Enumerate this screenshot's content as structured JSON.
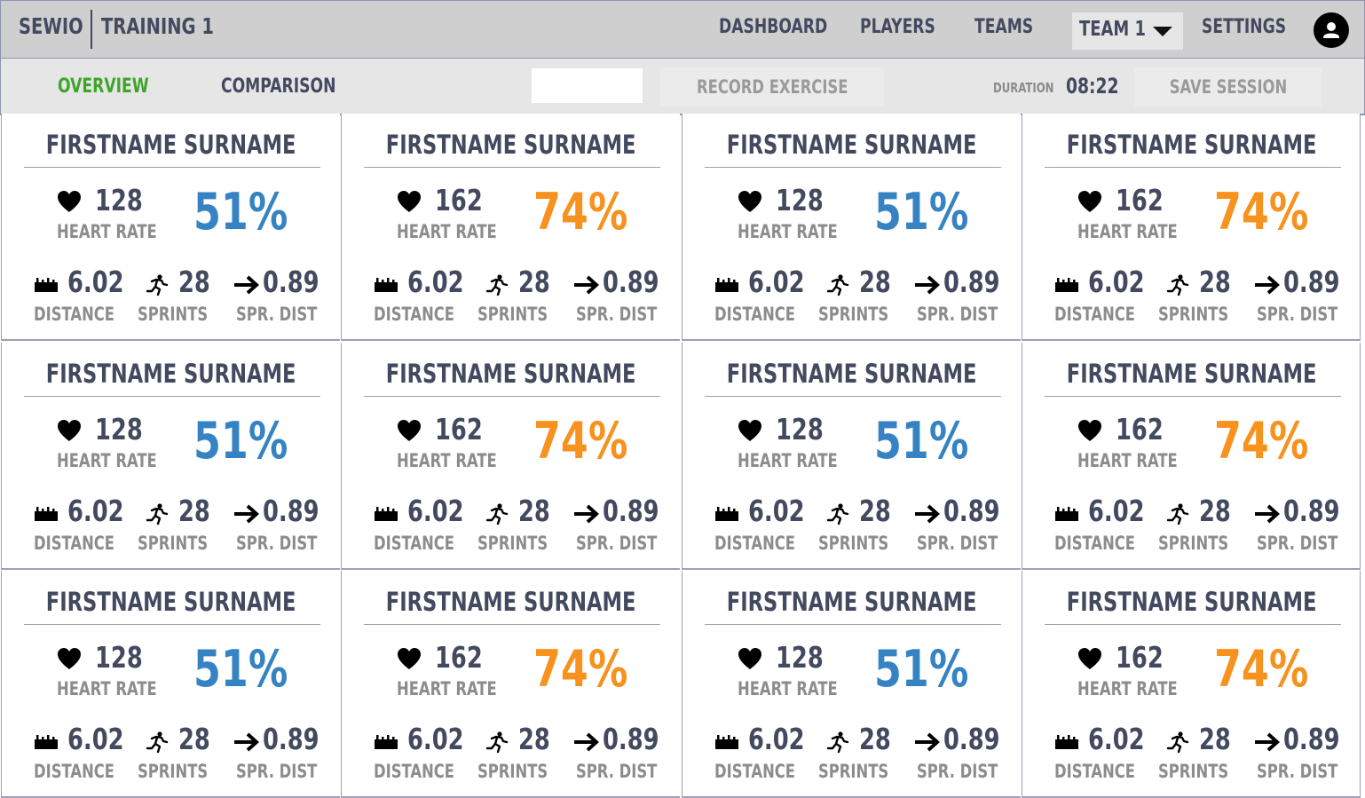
{
  "header": {
    "brand": "SEWIO",
    "session_title": "TRAINING 1",
    "nav": [
      "DASHBOARD",
      "PLAYERS",
      "TEAMS"
    ],
    "team_select": "TEAM 1",
    "settings": "SETTINGS",
    "avatar_icon": "user-icon"
  },
  "toolbar": {
    "tabs": [
      "OVERVIEW",
      "COMPARISON"
    ],
    "active_tab": "OVERVIEW",
    "exercise_input_value": "",
    "record_button": "RECORD EXERCISE",
    "duration_label": "DURATION",
    "duration_value": "08:22",
    "save_button": "SAVE SESSION"
  },
  "colors": {
    "active_tab": "#3fa52a",
    "percent_low": "#3683c4",
    "percent_high": "#f7921e",
    "text_dark": "#434a5f",
    "text_muted": "#8c8c8c"
  },
  "labels": {
    "heart_rate": "HEART RATE",
    "distance": "DISTANCE",
    "sprints": "SPRINTS",
    "sprint_distance": "SPR. DIST"
  },
  "icons": {
    "heart": "heart-icon",
    "distance": "ruler-icon",
    "sprints": "running-icon",
    "sprint_distance": "arrow-right-icon"
  },
  "players": [
    {
      "name": "FIRSTNAME SURNAME",
      "heart_rate": "128",
      "percent": "51%",
      "level": "blue",
      "distance": "6.02",
      "sprints": "28",
      "sprint_distance": "0.89"
    },
    {
      "name": "FIRSTNAME SURNAME",
      "heart_rate": "162",
      "percent": "74%",
      "level": "orange",
      "distance": "6.02",
      "sprints": "28",
      "sprint_distance": "0.89"
    },
    {
      "name": "FIRSTNAME SURNAME",
      "heart_rate": "128",
      "percent": "51%",
      "level": "blue",
      "distance": "6.02",
      "sprints": "28",
      "sprint_distance": "0.89"
    },
    {
      "name": "FIRSTNAME SURNAME",
      "heart_rate": "162",
      "percent": "74%",
      "level": "orange",
      "distance": "6.02",
      "sprints": "28",
      "sprint_distance": "0.89"
    },
    {
      "name": "FIRSTNAME SURNAME",
      "heart_rate": "128",
      "percent": "51%",
      "level": "blue",
      "distance": "6.02",
      "sprints": "28",
      "sprint_distance": "0.89"
    },
    {
      "name": "FIRSTNAME SURNAME",
      "heart_rate": "162",
      "percent": "74%",
      "level": "orange",
      "distance": "6.02",
      "sprints": "28",
      "sprint_distance": "0.89"
    },
    {
      "name": "FIRSTNAME SURNAME",
      "heart_rate": "128",
      "percent": "51%",
      "level": "blue",
      "distance": "6.02",
      "sprints": "28",
      "sprint_distance": "0.89"
    },
    {
      "name": "FIRSTNAME SURNAME",
      "heart_rate": "162",
      "percent": "74%",
      "level": "orange",
      "distance": "6.02",
      "sprints": "28",
      "sprint_distance": "0.89"
    },
    {
      "name": "FIRSTNAME SURNAME",
      "heart_rate": "128",
      "percent": "51%",
      "level": "blue",
      "distance": "6.02",
      "sprints": "28",
      "sprint_distance": "0.89"
    },
    {
      "name": "FIRSTNAME SURNAME",
      "heart_rate": "162",
      "percent": "74%",
      "level": "orange",
      "distance": "6.02",
      "sprints": "28",
      "sprint_distance": "0.89"
    },
    {
      "name": "FIRSTNAME SURNAME",
      "heart_rate": "128",
      "percent": "51%",
      "level": "blue",
      "distance": "6.02",
      "sprints": "28",
      "sprint_distance": "0.89"
    },
    {
      "name": "FIRSTNAME SURNAME",
      "heart_rate": "162",
      "percent": "74%",
      "level": "orange",
      "distance": "6.02",
      "sprints": "28",
      "sprint_distance": "0.89"
    }
  ]
}
